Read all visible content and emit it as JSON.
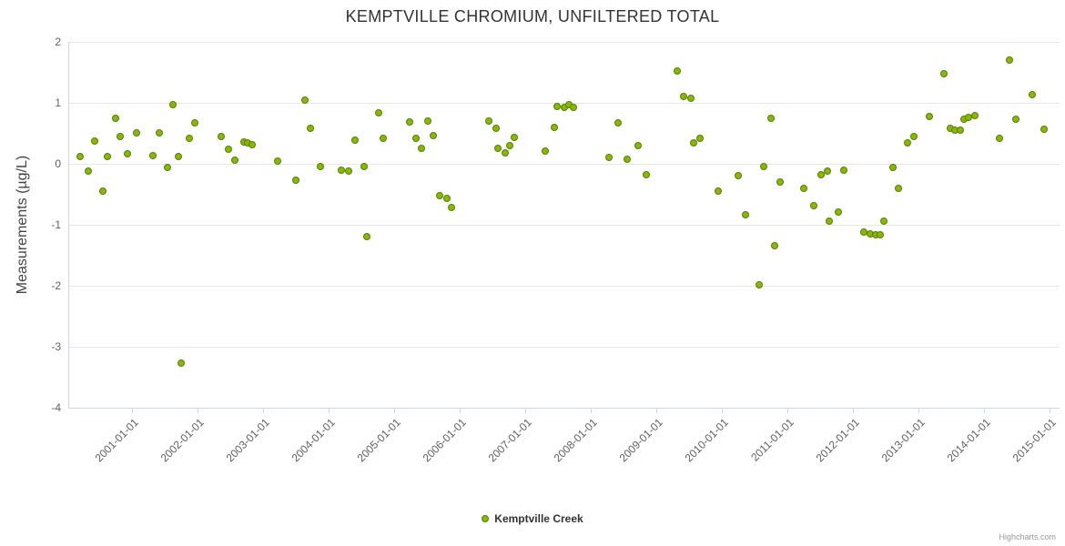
{
  "chart_data": {
    "type": "scatter",
    "title": "KEMPTVILLE CHROMIUM, UNFILTERED TOTAL",
    "xlabel": "",
    "ylabel": "Measurements (µg/L)",
    "ylim": [
      -4,
      2
    ],
    "xlim": [
      2000.03,
      2015.15
    ],
    "yticks": [
      2,
      1,
      0,
      -1,
      -2,
      -3,
      -4
    ],
    "xticks": [
      {
        "v": 2001,
        "label": "2001-01-01"
      },
      {
        "v": 2002,
        "label": "2002-01-01"
      },
      {
        "v": 2003,
        "label": "2003-01-01"
      },
      {
        "v": 2004,
        "label": "2004-01-01"
      },
      {
        "v": 2005,
        "label": "2005-01-01"
      },
      {
        "v": 2006,
        "label": "2006-01-01"
      },
      {
        "v": 2007,
        "label": "2007-01-01"
      },
      {
        "v": 2008,
        "label": "2008-01-01"
      },
      {
        "v": 2009,
        "label": "2009-01-01"
      },
      {
        "v": 2010,
        "label": "2010-01-01"
      },
      {
        "v": 2011,
        "label": "2011-01-01"
      },
      {
        "v": 2012,
        "label": "2012-01-01"
      },
      {
        "v": 2013,
        "label": "2013-01-01"
      },
      {
        "v": 2014,
        "label": "2014-01-01"
      },
      {
        "v": 2015,
        "label": "2015-01-01"
      }
    ],
    "grid": true,
    "colors": {
      "point_fill": "#86b808",
      "point_stroke": "#5a7d05",
      "grid": "#e6e6e6",
      "axis_line": "#ccd6eb",
      "title": "#333333",
      "labels": "#606060"
    },
    "legend": {
      "position": "bottom-center",
      "items": [
        {
          "label": "Kemptville Creek",
          "color": "#86b808"
        }
      ]
    },
    "credits": "Highcharts.com",
    "series": [
      {
        "name": "Kemptville Creek",
        "points": [
          [
            2000.21,
            0.12
          ],
          [
            2000.33,
            -0.12
          ],
          [
            2000.43,
            0.37
          ],
          [
            2000.56,
            -0.45
          ],
          [
            2000.63,
            0.12
          ],
          [
            2000.75,
            0.75
          ],
          [
            2000.82,
            0.45
          ],
          [
            2000.93,
            0.16
          ],
          [
            2001.07,
            0.51
          ],
          [
            2001.32,
            0.13
          ],
          [
            2001.42,
            0.51
          ],
          [
            2001.54,
            -0.06
          ],
          [
            2001.62,
            0.97
          ],
          [
            2001.71,
            0.12
          ],
          [
            2001.75,
            -3.27
          ],
          [
            2001.87,
            0.42
          ],
          [
            2001.96,
            0.67
          ],
          [
            2002.36,
            0.45
          ],
          [
            2002.48,
            0.24
          ],
          [
            2002.57,
            0.06
          ],
          [
            2002.71,
            0.36
          ],
          [
            2002.76,
            0.34
          ],
          [
            2002.83,
            0.31
          ],
          [
            2003.22,
            0.04
          ],
          [
            2003.5,
            -0.27
          ],
          [
            2003.64,
            1.04
          ],
          [
            2003.73,
            0.58
          ],
          [
            2003.87,
            -0.04
          ],
          [
            2004.2,
            -0.1
          ],
          [
            2004.3,
            -0.12
          ],
          [
            2004.4,
            0.39
          ],
          [
            2004.54,
            -0.04
          ],
          [
            2004.59,
            -1.19
          ],
          [
            2004.76,
            0.84
          ],
          [
            2004.84,
            0.42
          ],
          [
            2005.23,
            0.69
          ],
          [
            2005.34,
            0.42
          ],
          [
            2005.42,
            0.25
          ],
          [
            2005.51,
            0.7
          ],
          [
            2005.6,
            0.46
          ],
          [
            2005.7,
            -0.52
          ],
          [
            2005.8,
            -0.57
          ],
          [
            2005.87,
            -0.72
          ],
          [
            2006.45,
            0.7
          ],
          [
            2006.55,
            0.58
          ],
          [
            2006.59,
            0.25
          ],
          [
            2006.7,
            0.18
          ],
          [
            2006.76,
            0.3
          ],
          [
            2006.84,
            0.43
          ],
          [
            2007.31,
            0.21
          ],
          [
            2007.45,
            0.6
          ],
          [
            2007.49,
            0.94
          ],
          [
            2007.59,
            0.93
          ],
          [
            2007.67,
            0.97
          ],
          [
            2007.74,
            0.93
          ],
          [
            2008.28,
            0.1
          ],
          [
            2008.42,
            0.67
          ],
          [
            2008.56,
            0.07
          ],
          [
            2008.72,
            0.3
          ],
          [
            2008.84,
            -0.18
          ],
          [
            2009.32,
            1.52
          ],
          [
            2009.42,
            1.1
          ],
          [
            2009.53,
            1.07
          ],
          [
            2009.57,
            0.34
          ],
          [
            2009.67,
            0.42
          ],
          [
            2009.94,
            -0.45
          ],
          [
            2010.25,
            -0.19
          ],
          [
            2010.36,
            -0.84
          ],
          [
            2010.57,
            -1.99
          ],
          [
            2010.64,
            -0.04
          ],
          [
            2010.75,
            0.75
          ],
          [
            2010.81,
            -1.34
          ],
          [
            2010.89,
            -0.3
          ],
          [
            2011.25,
            -0.4
          ],
          [
            2011.4,
            -0.69
          ],
          [
            2011.51,
            -0.18
          ],
          [
            2011.61,
            -0.12
          ],
          [
            2011.64,
            -0.94
          ],
          [
            2011.78,
            -0.79
          ],
          [
            2011.86,
            -0.1
          ],
          [
            2012.17,
            -1.12
          ],
          [
            2012.26,
            -1.15
          ],
          [
            2012.35,
            -1.16
          ],
          [
            2012.41,
            -1.16
          ],
          [
            2012.47,
            -0.94
          ],
          [
            2012.61,
            -0.06
          ],
          [
            2012.69,
            -0.4
          ],
          [
            2012.83,
            0.34
          ],
          [
            2012.93,
            0.45
          ],
          [
            2013.16,
            0.78
          ],
          [
            2013.38,
            1.48
          ],
          [
            2013.48,
            0.58
          ],
          [
            2013.55,
            0.55
          ],
          [
            2013.63,
            0.55
          ],
          [
            2013.69,
            0.73
          ],
          [
            2013.76,
            0.76
          ],
          [
            2013.86,
            0.79
          ],
          [
            2014.24,
            0.42
          ],
          [
            2014.38,
            1.7
          ],
          [
            2014.49,
            0.73
          ],
          [
            2014.74,
            1.13
          ],
          [
            2014.91,
            0.57
          ]
        ]
      }
    ]
  }
}
